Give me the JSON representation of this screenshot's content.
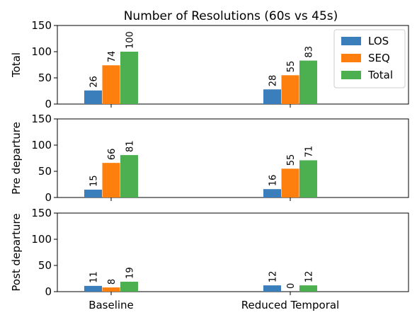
{
  "chart_data": {
    "type": "bar",
    "title": "Number of Resolutions (60s vs 45s)",
    "categories": [
      "Baseline",
      "Reduced Temporal"
    ],
    "legend": {
      "position": "top-right",
      "entries": [
        "LOS",
        "SEQ",
        "Total"
      ]
    },
    "colors": [
      "#3a7ebb",
      "#ff7f0e",
      "#4caf50"
    ],
    "panels": [
      {
        "ylabel": "Total",
        "ylim": [
          0,
          150
        ],
        "yticks": [
          "0",
          "50",
          "100",
          "150"
        ],
        "series": [
          {
            "name": "LOS",
            "values": [
              26,
              28
            ],
            "labels": [
              "26",
              "28"
            ]
          },
          {
            "name": "SEQ",
            "values": [
              74,
              55
            ],
            "labels": [
              "74",
              "55"
            ]
          },
          {
            "name": "Total",
            "values": [
              100,
              83
            ],
            "labels": [
              "100",
              "83"
            ]
          }
        ]
      },
      {
        "ylabel": "Pre departure",
        "ylim": [
          0,
          150
        ],
        "yticks": [
          "0",
          "50",
          "100",
          "150"
        ],
        "series": [
          {
            "name": "LOS",
            "values": [
              15,
              16
            ],
            "labels": [
              "15",
              "16"
            ]
          },
          {
            "name": "SEQ",
            "values": [
              66,
              55
            ],
            "labels": [
              "66",
              "55"
            ]
          },
          {
            "name": "Total",
            "values": [
              81,
              71
            ],
            "labels": [
              "81",
              "71"
            ]
          }
        ]
      },
      {
        "ylabel": "Post departure",
        "ylim": [
          0,
          150
        ],
        "yticks": [
          "0",
          "50",
          "100",
          "150"
        ],
        "series": [
          {
            "name": "LOS",
            "values": [
              11,
              12
            ],
            "labels": [
              "11",
              "12"
            ]
          },
          {
            "name": "SEQ",
            "values": [
              8,
              0
            ],
            "labels": [
              "8",
              "0"
            ]
          },
          {
            "name": "Total",
            "values": [
              19,
              12
            ],
            "labels": [
              "19",
              "12"
            ]
          }
        ]
      }
    ]
  }
}
